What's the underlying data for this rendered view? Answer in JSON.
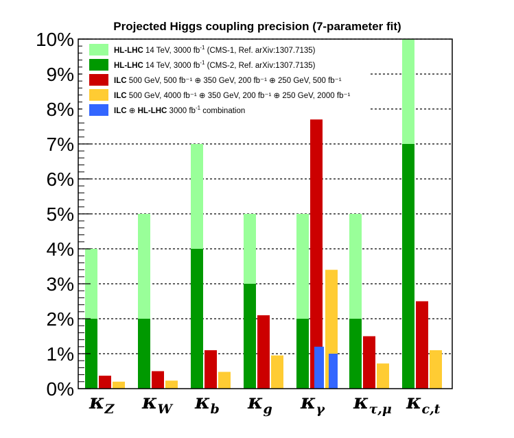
{
  "chart_data": {
    "type": "bar",
    "title": "Projected Higgs coupling precision (7-parameter fit)",
    "xlabel": "",
    "ylabel": "",
    "ylim": [
      0,
      10
    ],
    "yticks": [
      "0%",
      "1%",
      "2%",
      "3%",
      "4%",
      "5%",
      "6%",
      "7%",
      "8%",
      "9%",
      "10%"
    ],
    "grid": "horizontal dashed",
    "legend_position": "top-left",
    "categories": [
      {
        "symbol": "κ",
        "sub": "Z"
      },
      {
        "symbol": "κ",
        "sub": "W"
      },
      {
        "symbol": "κ",
        "sub": "b"
      },
      {
        "symbol": "κ",
        "sub": "g"
      },
      {
        "symbol": "κ",
        "sub": "γ"
      },
      {
        "symbol": "κ",
        "sub": "τ,μ"
      },
      {
        "symbol": "κ",
        "sub": "c,t"
      }
    ],
    "series": [
      {
        "key": "cms1",
        "color": "#99ff99",
        "values": [
          4,
          5,
          7,
          5,
          5,
          5,
          10
        ]
      },
      {
        "key": "cms2",
        "color": "#009900",
        "values": [
          2,
          2,
          4,
          3,
          2,
          2,
          7
        ]
      },
      {
        "key": "ilc500",
        "color": "#cc0000",
        "values": [
          0.37,
          0.5,
          1.1,
          2.1,
          7.7,
          1.5,
          2.5
        ]
      },
      {
        "key": "ilc2000",
        "color": "#ffcc33",
        "values": [
          0.2,
          0.23,
          0.48,
          0.95,
          3.4,
          0.72,
          1.1
        ]
      },
      {
        "key": "combo",
        "color": "#3366ff",
        "values": [
          null,
          null,
          null,
          null,
          1.2,
          null,
          null
        ]
      }
    ],
    "legend": [
      {
        "color": "#99ff99",
        "bold": "HL-LHC",
        "text": " 14 TeV, 3000 fb",
        "sup": "-1",
        "rest": " (CMS-1, Ref. arXiv:1307.7135)"
      },
      {
        "color": "#009900",
        "bold": "HL-LHC",
        "text": " 14 TeV, 3000 fb",
        "sup": "-1",
        "rest": " (CMS-2, Ref. arXiv:1307.7135)"
      },
      {
        "color": "#cc0000",
        "bold": "ILC",
        "text": " 500 GeV,   500 fb⁻¹ ⊕ 350 GeV, 200 fb⁻¹ ⊕ 250 GeV,   500 fb⁻¹",
        "sup": "",
        "rest": ""
      },
      {
        "color": "#ffcc33",
        "bold": "ILC",
        "text": " 500 GeV, 4000 fb⁻¹ ⊕ 350 GeV, 200 fb⁻¹ ⊕ 250 GeV, 2000 fb⁻¹",
        "sup": "",
        "rest": ""
      },
      {
        "color": "#3366ff",
        "bold": "ILC",
        "text": " ⊕ ",
        "bold2": "HL-LHC",
        "text2": " 3000 fb",
        "sup": "-1",
        "rest": " combination"
      }
    ]
  }
}
